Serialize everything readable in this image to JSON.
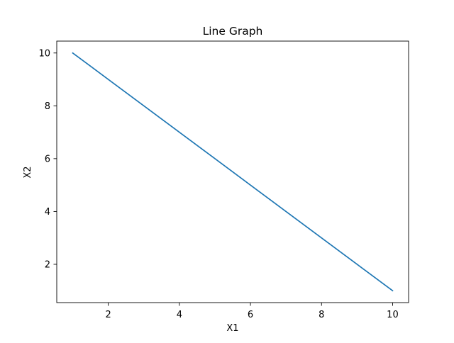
{
  "chart_data": {
    "type": "line",
    "title": "Line Graph",
    "xlabel": "X1",
    "ylabel": "X2",
    "xlim": [
      0.55,
      10.45
    ],
    "ylim": [
      0.55,
      10.45
    ],
    "xticks": [
      2,
      4,
      6,
      8,
      10
    ],
    "yticks": [
      2,
      4,
      6,
      8,
      10
    ],
    "grid": false,
    "series": [
      {
        "color": "#1f77b4",
        "x": [
          1,
          2,
          3,
          4,
          5,
          6,
          7,
          8,
          9,
          10
        ],
        "y": [
          10,
          9,
          8,
          7,
          6,
          5,
          4,
          3,
          2,
          1
        ]
      }
    ]
  }
}
